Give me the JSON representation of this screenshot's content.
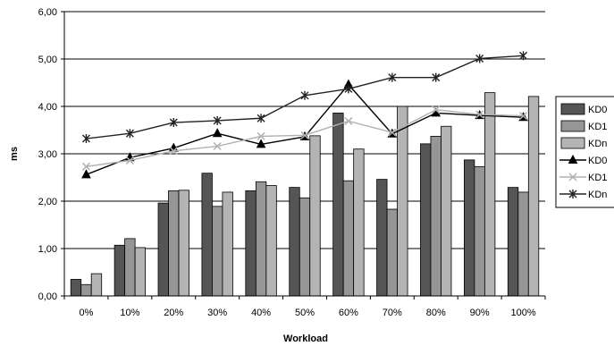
{
  "chart_data": {
    "type": "bar",
    "title": "",
    "xlabel": "Workload",
    "ylabel": "ms",
    "ylim": [
      0,
      6
    ],
    "yticks": [
      "0,00",
      "1,00",
      "2,00",
      "3,00",
      "4,00",
      "5,00",
      "6,00"
    ],
    "grid": "horizontal",
    "legend_position": "right (clipped)",
    "categories": [
      "0%",
      "10%",
      "20%",
      "30%",
      "40%",
      "50%",
      "60%",
      "70%",
      "80%",
      "90%",
      "100%"
    ],
    "series": [
      {
        "name": "KD0",
        "kind": "bar",
        "color": "#555555",
        "values": [
          0.35,
          1.07,
          1.96,
          2.59,
          2.22,
          2.29,
          3.86,
          2.46,
          3.21,
          2.87,
          2.29
        ]
      },
      {
        "name": "KD1",
        "kind": "bar",
        "color": "#969696",
        "values": [
          0.24,
          1.21,
          2.22,
          1.89,
          2.41,
          2.07,
          2.43,
          1.83,
          3.37,
          2.73,
          2.19
        ]
      },
      {
        "name": "KDn",
        "kind": "bar",
        "color": "#b4b4b4",
        "values": [
          0.47,
          1.02,
          2.23,
          2.19,
          2.33,
          3.38,
          3.1,
          4.0,
          3.58,
          4.29,
          4.21
        ]
      },
      {
        "name": "KD0",
        "kind": "line",
        "marker": "triangle",
        "color": "#000000",
        "values": [
          2.56,
          2.92,
          3.12,
          3.43,
          3.2,
          3.36,
          4.46,
          3.42,
          3.86,
          3.81,
          3.77
        ]
      },
      {
        "name": "KD1",
        "kind": "line",
        "marker": "x",
        "color": "#b0b0b0",
        "values": [
          2.73,
          2.86,
          3.06,
          3.16,
          3.37,
          3.39,
          3.69,
          3.45,
          3.93,
          3.83,
          3.8
        ]
      },
      {
        "name": "KDn",
        "kind": "line",
        "marker": "star",
        "color": "#222222",
        "values": [
          3.32,
          3.43,
          3.66,
          3.7,
          3.75,
          4.23,
          4.37,
          4.61,
          4.61,
          5.01,
          5.07
        ]
      }
    ]
  }
}
